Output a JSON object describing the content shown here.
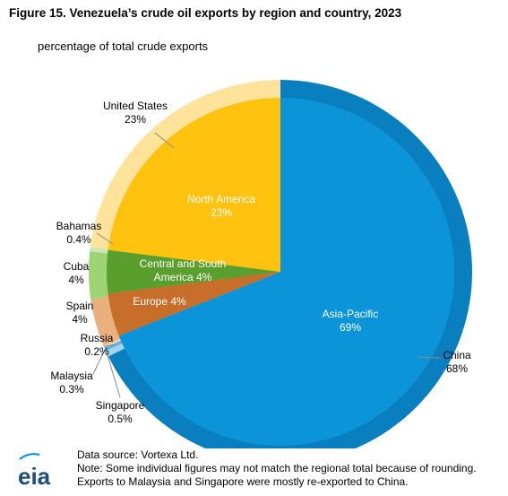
{
  "title": "Figure 15. Venezuela’s crude oil exports by region and country, 2023",
  "subtitle": "percentage of total crude exports",
  "footer": {
    "logo_text": "eia",
    "source": "Data source: Vortexa Ltd.",
    "note_line1": "Note: Some individual figures may not match the regional total because of rounding.",
    "note_line2": "Exports to Malaysia and Singapore were mostly re-exported to China."
  },
  "colors": {
    "asia_pacific": "#0B95D8",
    "china": "#0A7FC0",
    "malaysia": "#5DB5E6",
    "singapore": "#A6D4F0",
    "north_america": "#FFC20E",
    "united_states": "#FFE39A",
    "central_south_america": "#5A9E2E",
    "cuba": "#9DD474",
    "bahamas": "#CDE8AE",
    "europe": "#C66E2A",
    "spain": "#E9B07D",
    "russia": "#F3D0AE"
  },
  "chart_data": {
    "type": "pie",
    "title": "Figure 15. Venezuela’s crude oil exports by region and country, 2023",
    "subtitle": "percentage of total crude exports",
    "inner_ring": {
      "level": "region",
      "slices": [
        {
          "label": "North America",
          "value_label": "23%",
          "value": 23
        },
        {
          "label": "Central and South America",
          "value_label": "4%",
          "value": 4
        },
        {
          "label": "Europe",
          "value_label": "4%",
          "value": 4
        },
        {
          "label": "Asia-Pacific",
          "value_label": "69%",
          "value": 69
        }
      ]
    },
    "outer_ring": {
      "level": "country",
      "slices": [
        {
          "label": "United States",
          "value_label": "23%",
          "value": 23
        },
        {
          "label": "Bahamas",
          "value_label": "0.4%",
          "value": 0.4
        },
        {
          "label": "Cuba",
          "value_label": "4%",
          "value": 4
        },
        {
          "label": "Spain",
          "value_label": "4%",
          "value": 4
        },
        {
          "label": "Russia",
          "value_label": "0.2%",
          "value": 0.2
        },
        {
          "label": "Malaysia",
          "value_label": "0.3%",
          "value": 0.3
        },
        {
          "label": "Singapore",
          "value_label": "0.5%",
          "value": 0.5
        },
        {
          "label": "China",
          "value_label": "68%",
          "value": 68
        }
      ]
    }
  }
}
